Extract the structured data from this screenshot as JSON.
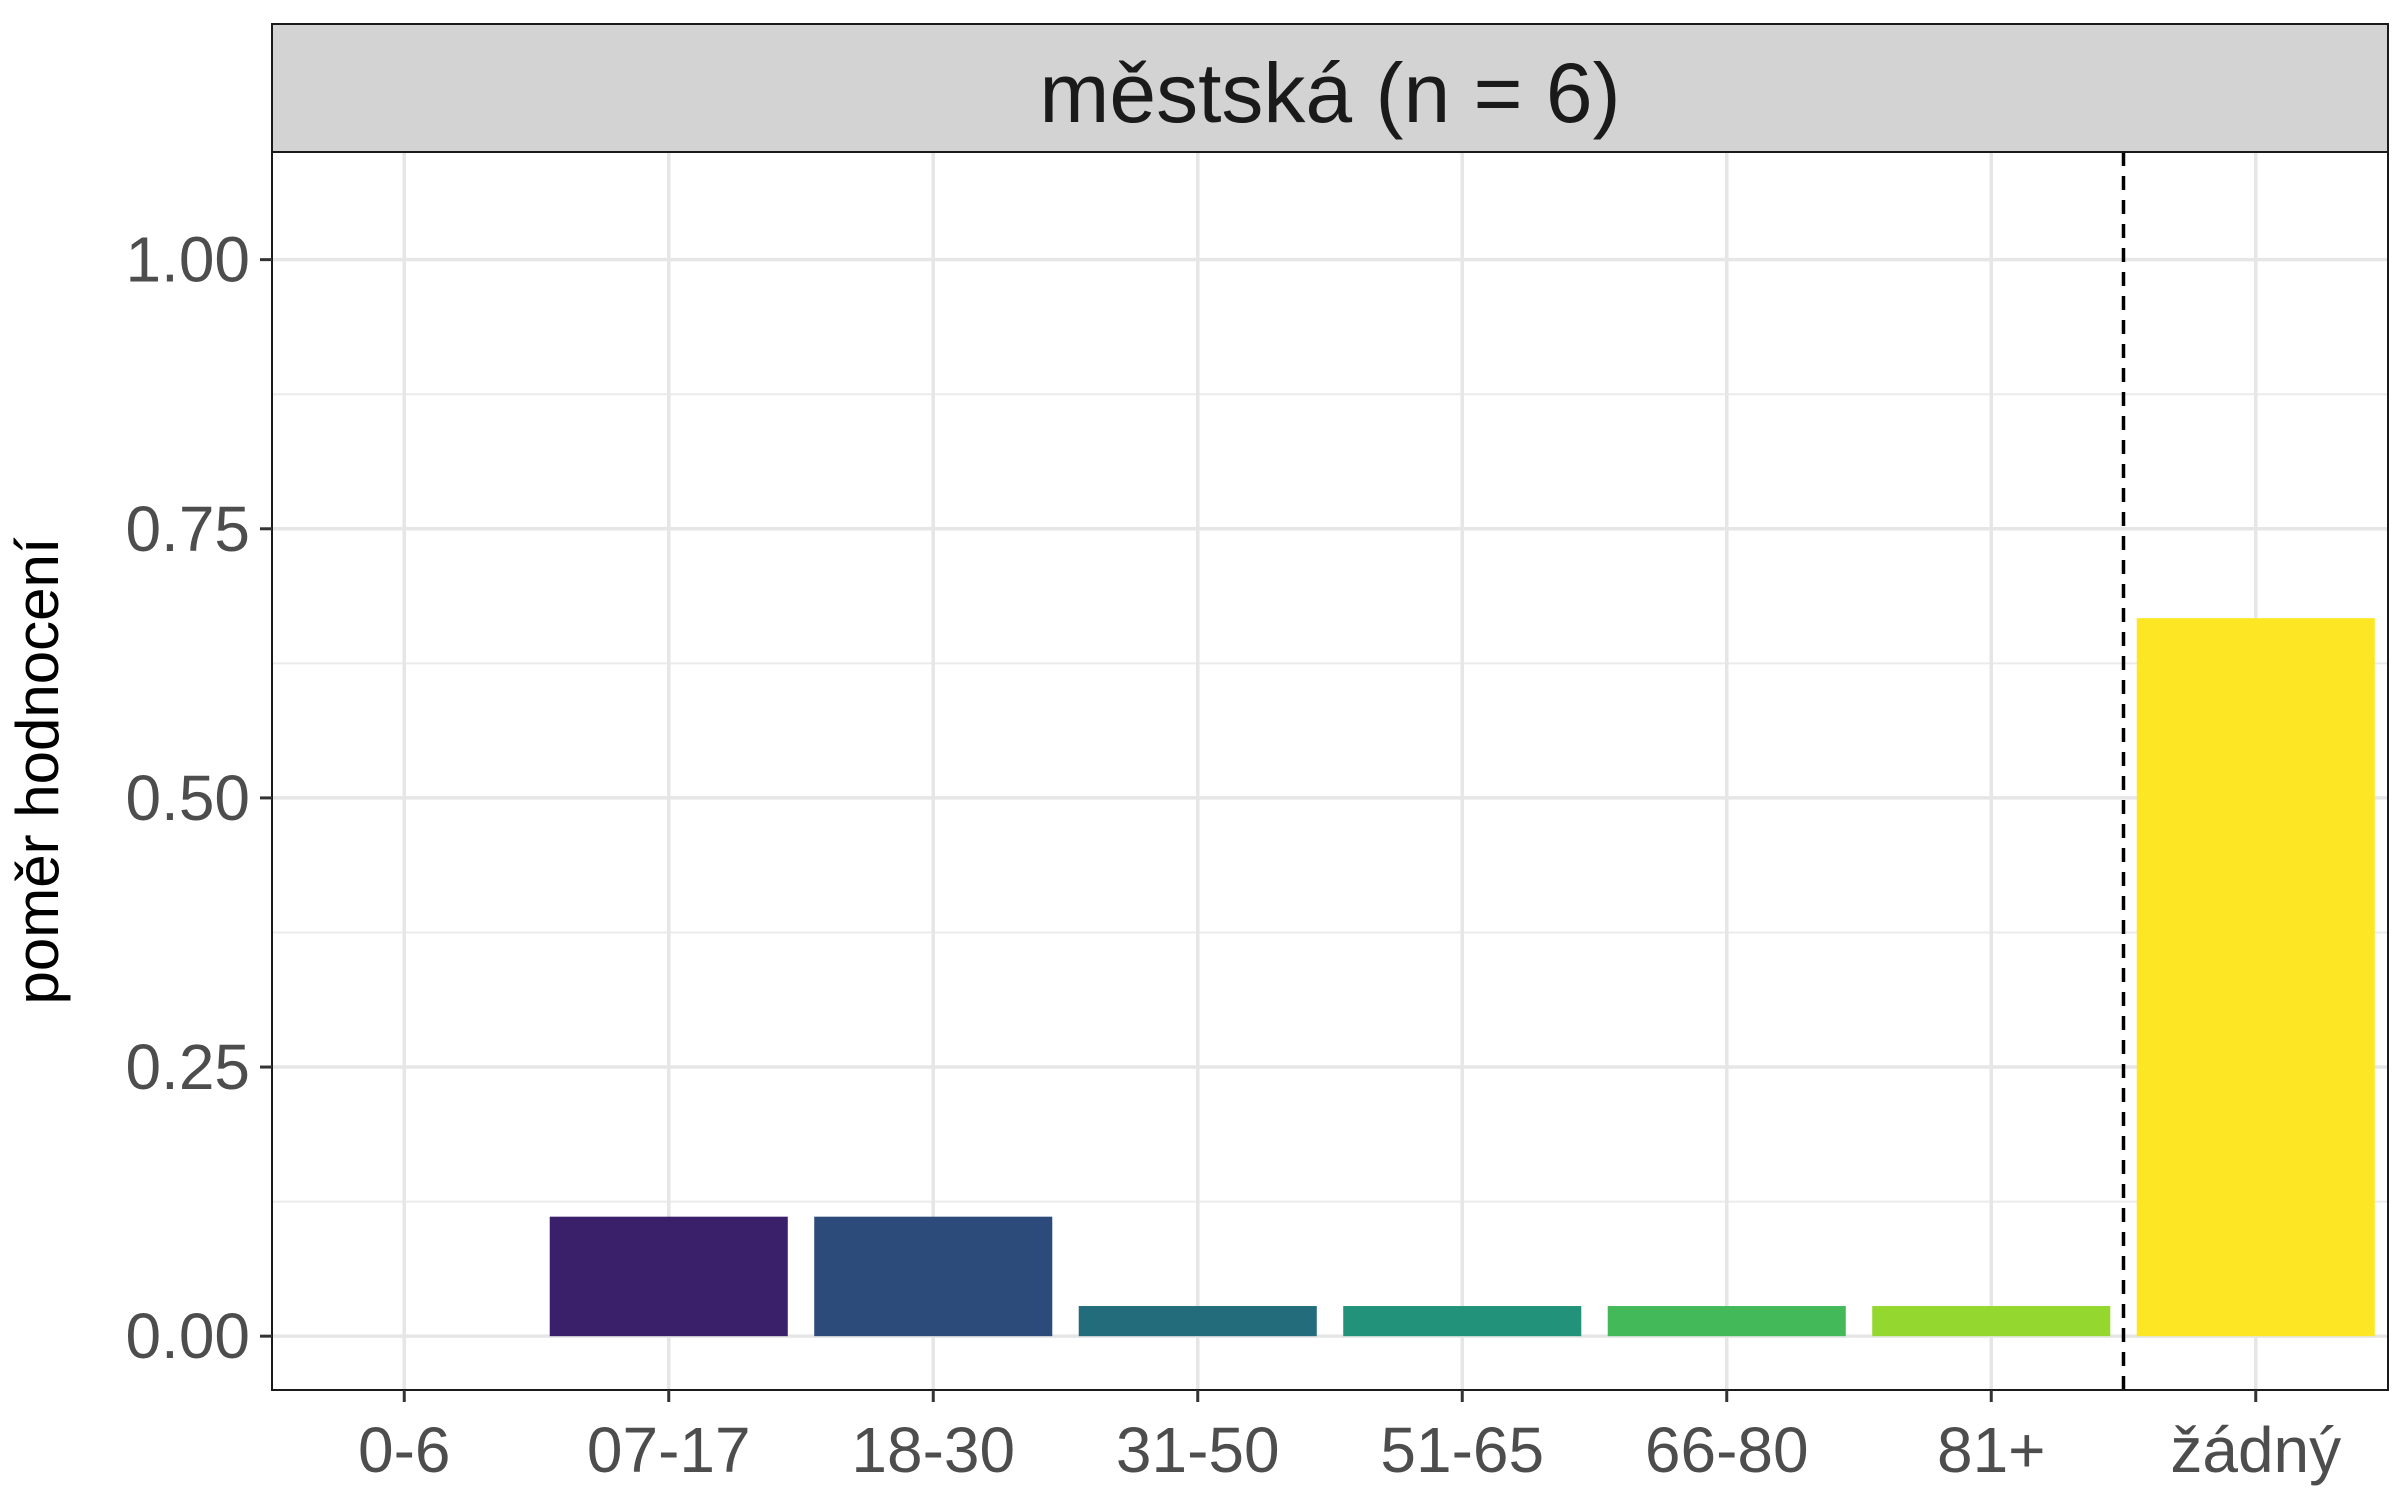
{
  "chart_data": {
    "type": "bar",
    "title": "městská (n = 6)",
    "xlabel": "",
    "ylabel": "poměr hodnocení",
    "categories": [
      "0-6",
      "07-17",
      "18-30",
      "31-50",
      "51-65",
      "66-80",
      "81+",
      "žádný"
    ],
    "values": [
      0,
      0.111,
      0.111,
      0.028,
      0.028,
      0.028,
      0.028,
      0.667
    ],
    "colors": [
      "#440154",
      "#3a1f6b",
      "#2d4b7a",
      "#236c7c",
      "#22927a",
      "#44b95a",
      "#94d72e",
      "#fde725"
    ],
    "ylim": [
      -0.05,
      1.1
    ],
    "yticks": [
      "0.00",
      "0.25",
      "0.50",
      "0.75",
      "1.00"
    ],
    "ytick_values": [
      0,
      0.25,
      0.5,
      0.75,
      1.0
    ],
    "reference_line": {
      "style": "dashed",
      "between": [
        "81+",
        "žádný"
      ]
    },
    "grid": true,
    "legend": "none"
  }
}
